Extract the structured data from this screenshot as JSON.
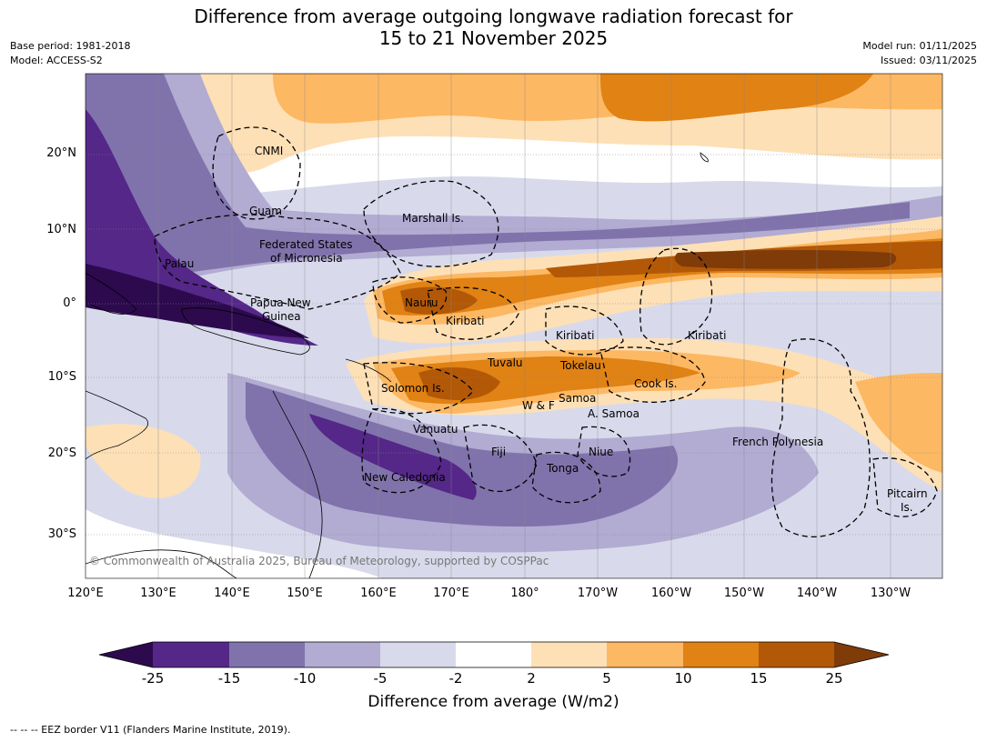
{
  "title": {
    "line1": "Difference from average outgoing longwave radiation forecast for",
    "line2": "15 to 21 November 2025"
  },
  "meta": {
    "base_period": "Base period: 1981-2018",
    "model": "Model: ACCESS-S2",
    "model_run": "Model run: 01/11/2025",
    "issued": "Issued: 03/11/2025"
  },
  "axes": {
    "lon_labels": [
      "120°E",
      "130°E",
      "140°E",
      "150°E",
      "160°E",
      "170°E",
      "180°",
      "170°W",
      "160°W",
      "150°W",
      "140°W",
      "130°W"
    ],
    "lat_labels": [
      "20°N",
      "10°N",
      "0°",
      "10°S",
      "20°S",
      "30°S"
    ]
  },
  "places": {
    "cnmi": "CNMI",
    "guam": "Guam",
    "marshall": "Marshall Is.",
    "fsm1": "Federated States",
    "fsm2": "of Micronesia",
    "palau": "Palau",
    "png1": "Papua New",
    "png2": "Guinea",
    "nauru": "Nauru",
    "kiribati_w": "Kiribati",
    "kiribati_c": "Kiribati",
    "kiribati_e": "Kiribati",
    "tuvalu": "Tuvalu",
    "tokelau": "Tokelau",
    "cook": "Cook Is.",
    "solomon": "Solomon Is.",
    "wf": "W & F",
    "samoa": "Samoa",
    "asamoa": "A. Samoa",
    "vanuatu": "Vanuatu",
    "fiji": "Fiji",
    "niue": "Niue",
    "tonga": "Tonga",
    "newcal": "New Caledonia",
    "frpoly": "French Polynesia",
    "pitcairn1": "Pitcairn",
    "pitcairn2": "Is."
  },
  "copyright": "© Commonwealth of Australia 2025, Bureau of Meteorology, supported by COSPPac",
  "colorbar": {
    "title": "Difference from average (W/m2)",
    "ticks": [
      "-25",
      "-15",
      "-10",
      "-5",
      "-2",
      "2",
      "5",
      "10",
      "15",
      "25"
    ],
    "colors": {
      "lt25": "#2d0a4e",
      "n25_15": "#542788",
      "n15_10": "#8073ac",
      "n10_5": "#b2abd2",
      "n5_2": "#d8daeb",
      "n2_2": "#ffffff",
      "p2_5": "#fee0b6",
      "p5_10": "#fdb863",
      "p10_15": "#e08214",
      "p15_25": "#b35806",
      "gt25": "#7f3b08"
    }
  },
  "footnote": "--  --  -- EEZ border V11 (Flanders Marine Institute, 2019)."
}
